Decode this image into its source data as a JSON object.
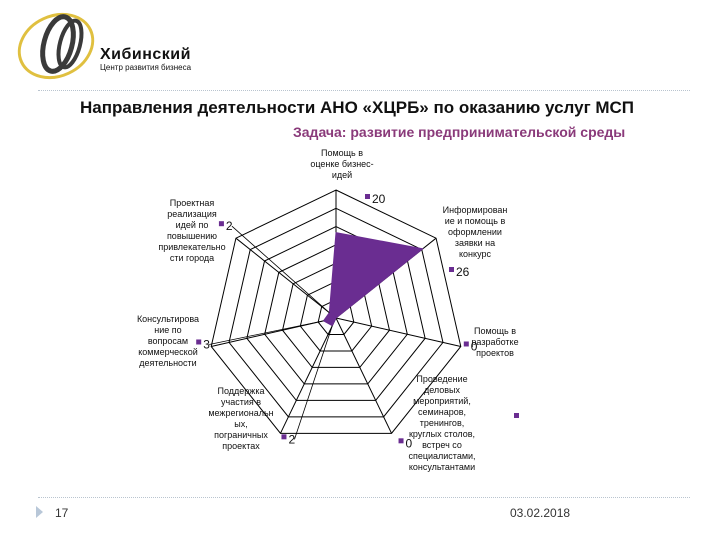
{
  "logo": {
    "name": "Хибинский",
    "tagline": "Центр развития бизнеса"
  },
  "title": "Направления деятельности АНО «ХЦРБ» по оказанию услуг МСП",
  "subtitle": "Задача: развитие предпринимательской среды",
  "footer": {
    "slide_number": "17",
    "date": "03.02.2018"
  },
  "colors": {
    "series_fill": "#6a2d91",
    "grid": "#000000",
    "subtitle": "#8a3a7a"
  },
  "chart_data": {
    "type": "radar",
    "categories": [
      "Помощь в оценке бизнес-идей",
      "Информирование и помощь в оформлении заявки на конкурс",
      "Помощь в разработке проектов",
      "Проведение деловых мероприятий, семинаров, тренингов, круглых столов, встреч со специалистами, консультантами",
      "Поддержка участия в межрегиональных, пограничных проектах",
      "Консультирование по вопросам коммерческой деятельности",
      "Проектная реализация идей по повышению привлекательности города"
    ],
    "category_display": [
      "Помощь в\nоценке бизнес-\nидей",
      "Информирован\nие и помощь в\nоформлении\nзаявки на\nконкурс",
      "Помощь в\nразработке\nпроектов",
      "Проведение\nделовых\nмероприятий,\nсеминаров,\nтренингов,\nкруглых столов,\nвстреч со\nспециалистами,\nконсультантами",
      "Поддержка\nучастия в\nмежрегиональн\nых,\nпограничных\nпроектах",
      "Консультирова\nние по\nвопросам\nкоммерческой\nдеятельности",
      "Проектная\nреализация\nидей по\nповышению\nпривлекательно\nсти города"
    ],
    "value_labels": [
      "20",
      "26",
      "0",
      "0",
      "2",
      "3",
      "2"
    ],
    "series": [
      {
        "values": [
          20,
          26,
          0,
          0,
          2,
          3,
          2
        ]
      }
    ],
    "r_max": 30,
    "rings": 7,
    "legend": "none"
  }
}
